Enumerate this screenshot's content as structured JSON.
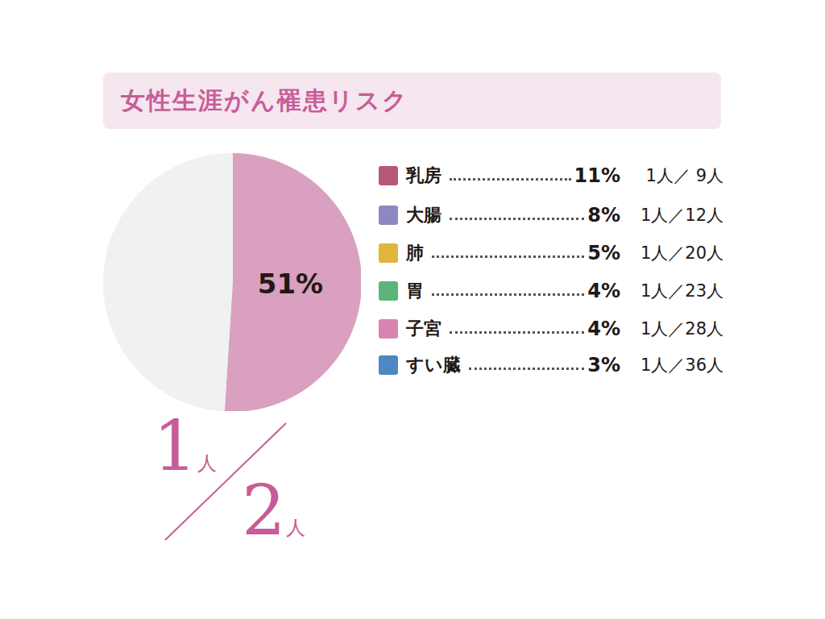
{
  "chart_data": {
    "type": "pie",
    "title": "女性生涯がん罹患リスク",
    "categories": [
      null,
      null
    ],
    "values": [
      51,
      49
    ],
    "value_labels": [
      "51%",
      null
    ],
    "colors": [
      "#d9a0c0",
      "#f0f1f1"
    ],
    "data_labels": true,
    "annotation": [
      "1人",
      "2人"
    ],
    "breakdown": [
      {
        "label": "乳房",
        "value": 11,
        "value_label": "11%",
        "ratio": "1人／ 9人",
        "color": "#b5577b"
      },
      {
        "label": "大腸",
        "value": 8,
        "value_label": "8%",
        "ratio": "1人／12人",
        "color": "#8e88c0"
      },
      {
        "label": "肺",
        "value": 5,
        "value_label": "5%",
        "ratio": "1人／20人",
        "color": "#e0b63c"
      },
      {
        "label": "胃",
        "value": 4,
        "value_label": "4%",
        "ratio": "1人／23人",
        "color": "#5cb47a"
      },
      {
        "label": "子宮",
        "value": 4,
        "value_label": "4%",
        "ratio": "1人／28人",
        "color": "#d785b0"
      },
      {
        "label": "すい臓",
        "value": 3,
        "value_label": "3%",
        "ratio": "1人／36人",
        "color": "#4d88c2"
      }
    ]
  }
}
